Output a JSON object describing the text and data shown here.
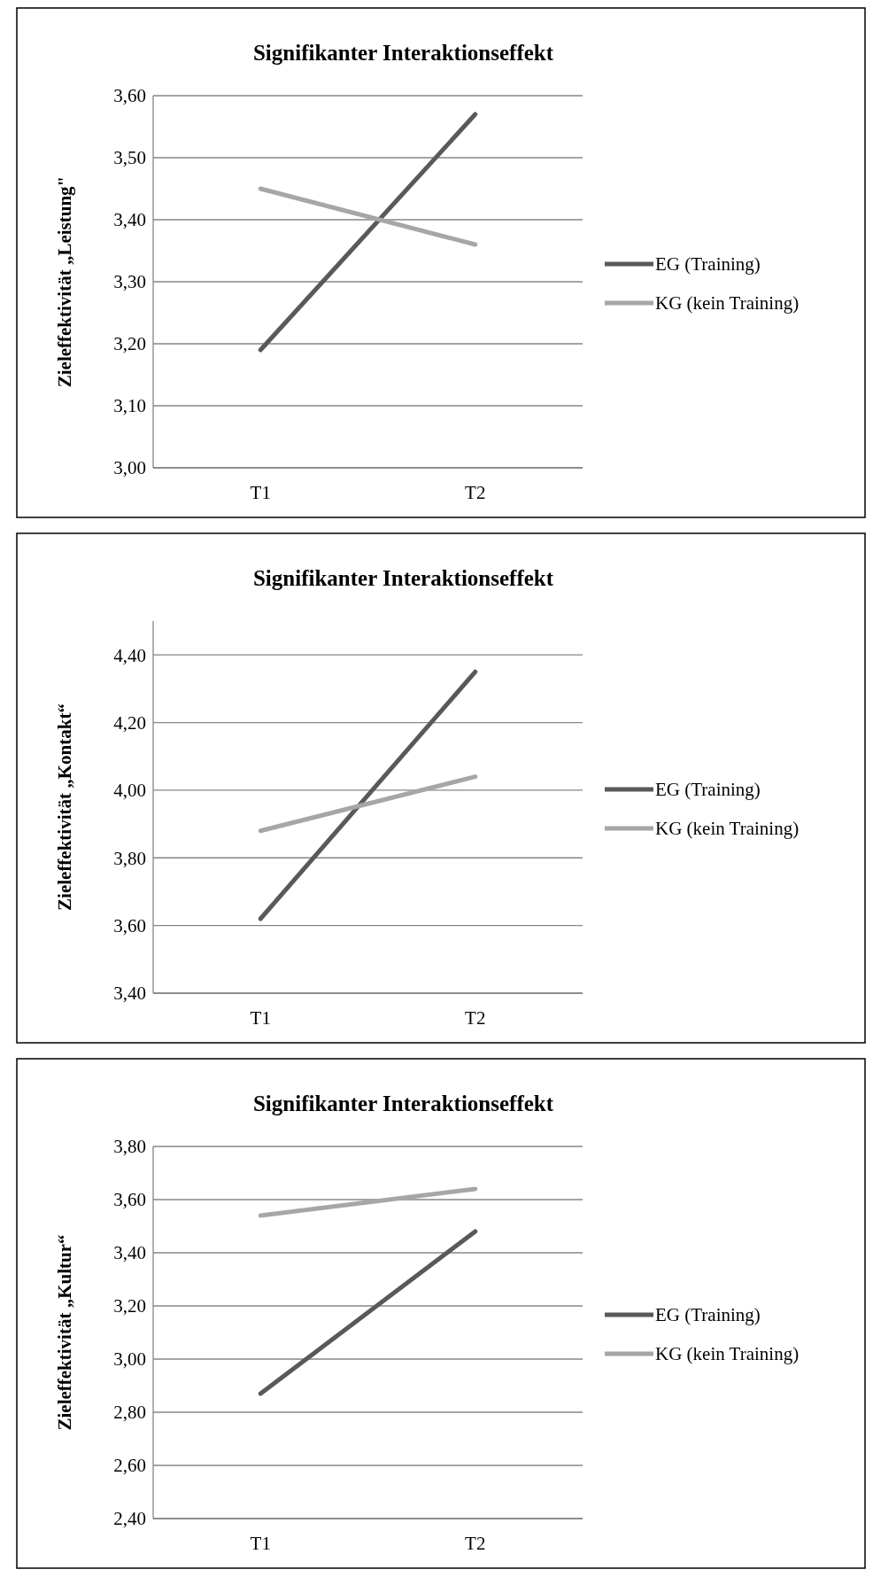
{
  "chart_data": [
    {
      "type": "line",
      "title": "Signifikanter Interaktionseffekt",
      "ylabel": "Zieleffektivität „Leistung\"",
      "categories": [
        "T1",
        "T2"
      ],
      "series": [
        {
          "name": "EG (Training)",
          "color": "#595959",
          "values": [
            3.19,
            3.57
          ]
        },
        {
          "name": "KG (kein Training)",
          "color": "#a6a6a6",
          "values": [
            3.45,
            3.36
          ]
        }
      ],
      "ylim": [
        3.0,
        3.6
      ],
      "yticks": [
        {
          "value": 3.0,
          "label": "3,00"
        },
        {
          "value": 3.1,
          "label": "3,10"
        },
        {
          "value": 3.2,
          "label": "3,20"
        },
        {
          "value": 3.3,
          "label": "3,30"
        },
        {
          "value": 3.4,
          "label": "3,40"
        },
        {
          "value": 3.5,
          "label": "3,50"
        },
        {
          "value": 3.6,
          "label": "3,60"
        }
      ],
      "grid": "y",
      "legend": "right"
    },
    {
      "type": "line",
      "title": "Signifikanter Interaktionseffekt",
      "ylabel": "Zieleffektivität „Kontakt“",
      "categories": [
        "T1",
        "T2"
      ],
      "series": [
        {
          "name": "EG (Training)",
          "color": "#595959",
          "values": [
            3.62,
            4.35
          ]
        },
        {
          "name": "KG (kein Training)",
          "color": "#a6a6a6",
          "values": [
            3.88,
            4.04
          ]
        }
      ],
      "ylim": [
        3.4,
        4.5
      ],
      "yticks": [
        {
          "value": 3.4,
          "label": "3,40"
        },
        {
          "value": 3.6,
          "label": "3,60"
        },
        {
          "value": 3.8,
          "label": "3,80"
        },
        {
          "value": 4.0,
          "label": "4,00"
        },
        {
          "value": 4.2,
          "label": "4,20"
        },
        {
          "value": 4.4,
          "label": "4,40"
        }
      ],
      "grid": "y",
      "legend": "right"
    },
    {
      "type": "line",
      "title": "Signifikanter Interaktionseffekt",
      "ylabel": "Zieleffektivität „Kultur“",
      "categories": [
        "T1",
        "T2"
      ],
      "series": [
        {
          "name": "EG (Training)",
          "color": "#595959",
          "values": [
            2.87,
            3.48
          ]
        },
        {
          "name": "KG (kein Training)",
          "color": "#a6a6a6",
          "values": [
            3.54,
            3.64
          ]
        }
      ],
      "ylim": [
        2.4,
        3.8
      ],
      "yticks": [
        {
          "value": 2.4,
          "label": "2,40"
        },
        {
          "value": 2.6,
          "label": "2,60"
        },
        {
          "value": 2.8,
          "label": "2,80"
        },
        {
          "value": 3.0,
          "label": "3,00"
        },
        {
          "value": 3.2,
          "label": "3,20"
        },
        {
          "value": 3.4,
          "label": "3,40"
        },
        {
          "value": 3.6,
          "label": "3,60"
        },
        {
          "value": 3.8,
          "label": "3,80"
        }
      ],
      "grid": "y",
      "legend": "right"
    }
  ]
}
